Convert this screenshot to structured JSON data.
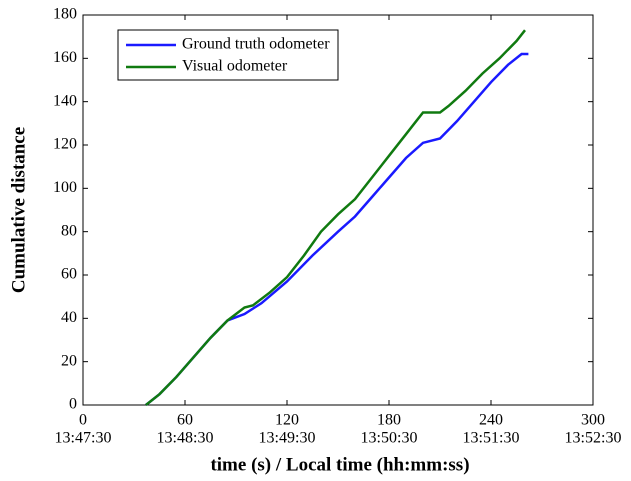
{
  "chart_data": {
    "type": "line",
    "xlabel": "time (s) / Local time (hh:mm:ss)",
    "ylabel": "Cumulative distance",
    "xlim": [
      0,
      300
    ],
    "xticks": [
      0,
      60,
      120,
      180,
      240,
      300
    ],
    "xtick_time_labels": [
      "13:47:30",
      "13:48:30",
      "13:49:30",
      "13:50:30",
      "13:51:30",
      "13:52:30"
    ],
    "ylim": [
      0,
      180
    ],
    "yticks": [
      0,
      20,
      40,
      60,
      80,
      100,
      120,
      140,
      160,
      180
    ],
    "legend": "upper left",
    "series": [
      {
        "name": "Ground truth odometer",
        "color": "#1a1aff",
        "x": [
          37,
          45,
          55,
          65,
          75,
          85,
          95,
          105,
          120,
          135,
          150,
          160,
          170,
          180,
          190,
          200,
          210,
          220,
          230,
          240,
          250,
          258,
          262
        ],
        "values": [
          0,
          5,
          13,
          22,
          31,
          39,
          42,
          47,
          57,
          69,
          80,
          87,
          96,
          105,
          114,
          121,
          123,
          131,
          140,
          149,
          157,
          162,
          162
        ]
      },
      {
        "name": "Visual odometer",
        "color": "#107a10",
        "x": [
          37,
          45,
          55,
          65,
          75,
          85,
          95,
          100,
          110,
          120,
          130,
          140,
          150,
          160,
          170,
          180,
          190,
          195,
          200,
          210,
          215,
          225,
          235,
          245,
          255,
          260
        ],
        "values": [
          0,
          5,
          13,
          22,
          31,
          39,
          45,
          46,
          52,
          59,
          69,
          80,
          88,
          95,
          105,
          115,
          125,
          130,
          135,
          135,
          138,
          145,
          153,
          160,
          168,
          173
        ]
      }
    ]
  }
}
